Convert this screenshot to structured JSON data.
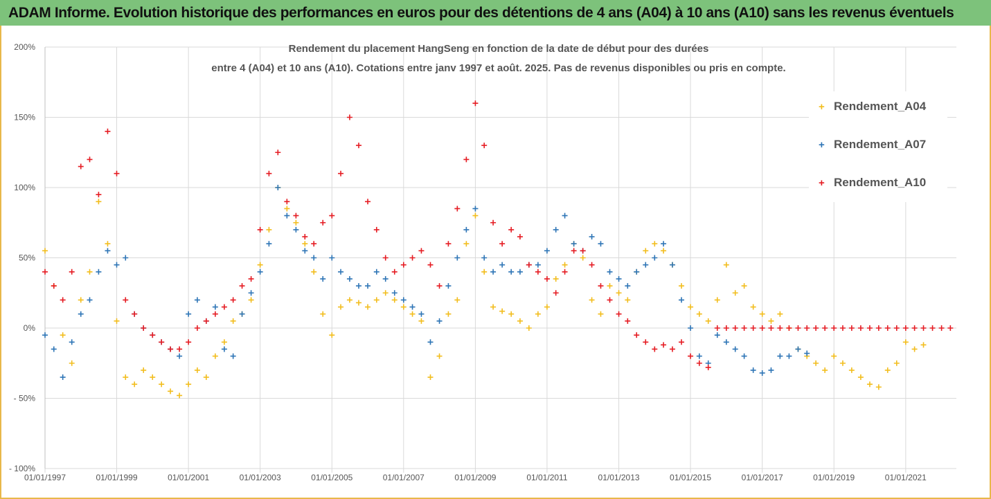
{
  "banner": {
    "title": "ADAM Informe. Evolution historique des performances en euros pour des détentions de 4 ans (A04) à 10 ans (A10) sans les revenus éventuels"
  },
  "colors": {
    "banner_bg": "#7dc27b",
    "frame": "#e8b84a",
    "A04": "#f2bd1d",
    "A07": "#2e75b6",
    "A10": "#e51c23",
    "grid": "#d9d9d9"
  },
  "chart_data": {
    "type": "scatter",
    "title_line1": "Rendement du placement HangSeng en fonction de la date de début pour des durées",
    "title_line2": "entre 4 (A04) et 10 ans (A10). Cotations entre janv 1997 et août. 2025. Pas de revenus disponibles ou pris en compte.",
    "xlabel": "",
    "ylabel": "",
    "x_range": [
      "1997-01-01",
      "2022-06-01"
    ],
    "x_ticks": [
      "01/01/1997",
      "01/01/1999",
      "01/01/2001",
      "01/01/2003",
      "01/01/2005",
      "01/01/2007",
      "01/01/2009",
      "01/01/2011",
      "01/01/2013",
      "01/01/2015",
      "01/01/2017",
      "01/01/2019",
      "01/01/2021"
    ],
    "ylim": [
      -100,
      200
    ],
    "y_ticks": [
      200,
      150,
      100,
      50,
      0,
      -50,
      -100
    ],
    "y_tick_labels": [
      "200%",
      "150%",
      "100%",
      "50%",
      "0%",
      "- 50%",
      "- 100%"
    ],
    "grid": true,
    "legend_position": "top-right",
    "marker": "+",
    "series": [
      {
        "name": "Rendement_A04",
        "x": [
          "1997-01",
          "1997-04",
          "1997-07",
          "1997-10",
          "1998-01",
          "1998-04",
          "1998-07",
          "1998-10",
          "1999-01",
          "1999-04",
          "1999-07",
          "1999-10",
          "2000-01",
          "2000-04",
          "2000-07",
          "2000-10",
          "2001-01",
          "2001-04",
          "2001-07",
          "2001-10",
          "2002-01",
          "2002-04",
          "2002-07",
          "2002-10",
          "2003-01",
          "2003-04",
          "2003-07",
          "2003-10",
          "2004-01",
          "2004-04",
          "2004-07",
          "2004-10",
          "2005-01",
          "2005-04",
          "2005-07",
          "2005-10",
          "2006-01",
          "2006-04",
          "2006-07",
          "2006-10",
          "2007-01",
          "2007-04",
          "2007-07",
          "2007-10",
          "2008-01",
          "2008-04",
          "2008-07",
          "2008-10",
          "2009-01",
          "2009-04",
          "2009-07",
          "2009-10",
          "2010-01",
          "2010-04",
          "2010-07",
          "2010-10",
          "2011-01",
          "2011-04",
          "2011-07",
          "2011-10",
          "2012-01",
          "2012-04",
          "2012-07",
          "2012-10",
          "2013-01",
          "2013-04",
          "2013-07",
          "2013-10",
          "2014-01",
          "2014-04",
          "2014-07",
          "2014-10",
          "2015-01",
          "2015-04",
          "2015-07",
          "2015-10",
          "2016-01",
          "2016-04",
          "2016-07",
          "2016-10",
          "2017-01",
          "2017-04",
          "2017-07",
          "2017-10",
          "2018-01",
          "2018-04",
          "2018-07",
          "2018-10",
          "2019-01",
          "2019-04",
          "2019-07",
          "2019-10",
          "2020-01",
          "2020-04",
          "2020-07",
          "2020-10",
          "2021-01",
          "2021-04",
          "2021-07"
        ],
        "values": [
          55,
          30,
          -5,
          -25,
          20,
          40,
          90,
          60,
          5,
          -35,
          -40,
          -30,
          -35,
          -40,
          -45,
          -48,
          -40,
          -30,
          -35,
          -20,
          -10,
          5,
          10,
          20,
          45,
          70,
          100,
          85,
          75,
          60,
          40,
          10,
          -5,
          15,
          20,
          18,
          15,
          20,
          25,
          20,
          15,
          10,
          5,
          -35,
          -20,
          10,
          20,
          60,
          80,
          40,
          15,
          12,
          10,
          5,
          0,
          10,
          15,
          35,
          45,
          60,
          50,
          20,
          10,
          30,
          25,
          20,
          40,
          55,
          60,
          55,
          45,
          30,
          15,
          10,
          5,
          20,
          45,
          25,
          30,
          15,
          10,
          5,
          10,
          0,
          -15,
          -20,
          -25,
          -30,
          -20,
          -25,
          -30,
          -35,
          -40,
          -42,
          -30,
          -25,
          -10,
          -15,
          -12
        ]
      },
      {
        "name": "Rendement_A07",
        "x": [
          "1997-01",
          "1997-04",
          "1997-07",
          "1997-10",
          "1998-01",
          "1998-04",
          "1998-07",
          "1998-10",
          "1999-01",
          "1999-04",
          "1999-07",
          "1999-10",
          "2000-01",
          "2000-04",
          "2000-07",
          "2000-10",
          "2001-01",
          "2001-04",
          "2001-07",
          "2001-10",
          "2002-01",
          "2002-04",
          "2002-07",
          "2002-10",
          "2003-01",
          "2003-04",
          "2003-07",
          "2003-10",
          "2004-01",
          "2004-04",
          "2004-07",
          "2004-10",
          "2005-01",
          "2005-04",
          "2005-07",
          "2005-10",
          "2006-01",
          "2006-04",
          "2006-07",
          "2006-10",
          "2007-01",
          "2007-04",
          "2007-07",
          "2007-10",
          "2008-01",
          "2008-04",
          "2008-07",
          "2008-10",
          "2009-01",
          "2009-04",
          "2009-07",
          "2009-10",
          "2010-01",
          "2010-04",
          "2010-07",
          "2010-10",
          "2011-01",
          "2011-04",
          "2011-07",
          "2011-10",
          "2012-01",
          "2012-04",
          "2012-07",
          "2012-10",
          "2013-01",
          "2013-04",
          "2013-07",
          "2013-10",
          "2014-01",
          "2014-04",
          "2014-07",
          "2014-10",
          "2015-01",
          "2015-04",
          "2015-07",
          "2015-10",
          "2016-01",
          "2016-04",
          "2016-07",
          "2016-10",
          "2017-01",
          "2017-04",
          "2017-07",
          "2017-10",
          "2018-01",
          "2018-04"
        ],
        "values": [
          -5,
          -15,
          -35,
          -10,
          10,
          20,
          40,
          55,
          45,
          50,
          10,
          0,
          -5,
          -10,
          -15,
          -20,
          10,
          20,
          5,
          15,
          -15,
          -20,
          10,
          25,
          40,
          60,
          100,
          80,
          70,
          55,
          50,
          35,
          50,
          40,
          35,
          30,
          30,
          40,
          35,
          25,
          20,
          15,
          10,
          -10,
          5,
          30,
          50,
          70,
          85,
          50,
          40,
          45,
          40,
          40,
          45,
          45,
          55,
          70,
          80,
          60,
          55,
          65,
          60,
          40,
          35,
          30,
          40,
          45,
          50,
          60,
          45,
          20,
          0,
          -20,
          -25,
          -5,
          -10,
          -15,
          -20,
          -30,
          -32,
          -30,
          -20,
          -20,
          -15,
          -18
        ]
      },
      {
        "name": "Rendement_A10",
        "x": [
          "1997-01",
          "1997-04",
          "1997-07",
          "1997-10",
          "1998-01",
          "1998-04",
          "1998-07",
          "1998-10",
          "1999-01",
          "1999-04",
          "1999-07",
          "1999-10",
          "2000-01",
          "2000-04",
          "2000-07",
          "2000-10",
          "2001-01",
          "2001-04",
          "2001-07",
          "2001-10",
          "2002-01",
          "2002-04",
          "2002-07",
          "2002-10",
          "2003-01",
          "2003-04",
          "2003-07",
          "2003-10",
          "2004-01",
          "2004-04",
          "2004-07",
          "2004-10",
          "2005-01",
          "2005-04",
          "2005-07",
          "2005-10",
          "2006-01",
          "2006-04",
          "2006-07",
          "2006-10",
          "2007-01",
          "2007-04",
          "2007-07",
          "2007-10",
          "2008-01",
          "2008-04",
          "2008-07",
          "2008-10",
          "2009-01",
          "2009-04",
          "2009-07",
          "2009-10",
          "2010-01",
          "2010-04",
          "2010-07",
          "2010-10",
          "2011-01",
          "2011-04",
          "2011-07",
          "2011-10",
          "2012-01",
          "2012-04",
          "2012-07",
          "2012-10",
          "2013-01",
          "2013-04",
          "2013-07",
          "2013-10",
          "2014-01",
          "2014-04",
          "2014-07",
          "2014-10",
          "2015-01",
          "2015-04",
          "2015-07",
          "2015-10",
          "2016-01",
          "2016-04",
          "2016-07",
          "2016-10",
          "2017-01",
          "2017-04",
          "2017-07",
          "2017-10",
          "2018-01",
          "2018-04",
          "2018-07",
          "2018-10",
          "2019-01",
          "2019-04",
          "2019-07",
          "2019-10",
          "2020-01",
          "2020-04",
          "2020-07",
          "2020-10",
          "2021-01",
          "2021-04",
          "2021-07",
          "2021-10",
          "2022-01",
          "2022-04"
        ],
        "values": [
          40,
          30,
          20,
          40,
          115,
          120,
          95,
          140,
          110,
          20,
          10,
          0,
          -5,
          -10,
          -15,
          -15,
          -10,
          0,
          5,
          10,
          15,
          20,
          30,
          35,
          70,
          110,
          125,
          90,
          80,
          65,
          60,
          75,
          80,
          110,
          150,
          130,
          90,
          70,
          50,
          40,
          45,
          50,
          55,
          45,
          30,
          60,
          85,
          120,
          160,
          130,
          75,
          60,
          70,
          65,
          45,
          40,
          35,
          25,
          40,
          55,
          55,
          45,
          30,
          20,
          10,
          5,
          -5,
          -10,
          -15,
          -12,
          -15,
          -10,
          -20,
          -25,
          -28,
          0,
          0,
          0,
          0,
          0,
          0,
          0,
          0,
          0,
          0,
          0,
          0,
          0,
          0,
          0,
          0,
          0,
          0,
          0,
          0,
          0,
          0,
          0,
          0,
          0,
          0,
          0
        ]
      }
    ]
  }
}
